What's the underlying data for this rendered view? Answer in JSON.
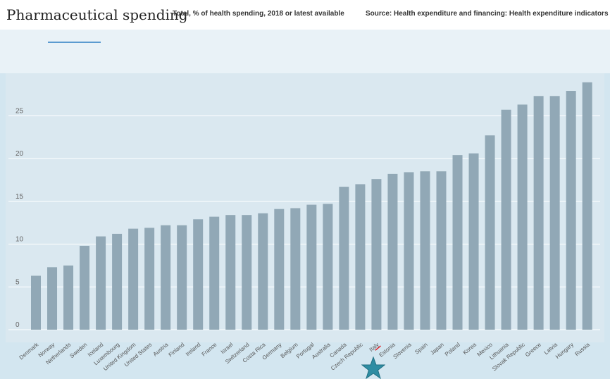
{
  "header": {
    "title": "Pharmaceutical spending",
    "subtitle": "Total, % of health spending, 2018 or latest available",
    "source": "Source: Health expenditure and financing: Health expenditure indicators"
  },
  "colors": {
    "bar": "#91a8b6",
    "highlight_marker": "#2f8da3",
    "highlight_underline": "#e0242a",
    "grid": "#ffffff",
    "tick_text": "#666666"
  },
  "highlight": {
    "category": "Italy",
    "marker": "star-icon"
  },
  "chart_data": {
    "type": "bar",
    "title": "",
    "xlabel": "",
    "ylabel": "",
    "ylim": [
      0,
      29
    ],
    "yticks": [
      0,
      5,
      10,
      15,
      20,
      25
    ],
    "grid": true,
    "categories": [
      "Denmark",
      "Norway",
      "Netherlands",
      "Sweden",
      "Iceland",
      "Luxembourg",
      "United Kingdom",
      "United States",
      "Austria",
      "Finland",
      "Ireland",
      "France",
      "Israel",
      "Switzerland",
      "Costa Rica",
      "Germany",
      "Belgium",
      "Portugal",
      "Australia",
      "Canada",
      "Czech Republic",
      "Italy",
      "Estonia",
      "Slovenia",
      "Spain",
      "Japan",
      "Poland",
      "Korea",
      "Mexico",
      "Lithuania",
      "Slovak Republic",
      "Greece",
      "Latvia",
      "Hungary",
      "Russia"
    ],
    "values": [
      6.3,
      7.3,
      7.5,
      9.8,
      10.9,
      11.2,
      11.8,
      11.9,
      12.2,
      12.2,
      12.9,
      13.2,
      13.4,
      13.4,
      13.6,
      14.1,
      14.2,
      14.6,
      14.7,
      16.7,
      17.0,
      17.6,
      18.2,
      18.4,
      18.5,
      18.5,
      20.4,
      20.6,
      22.7,
      25.7,
      26.3,
      27.3,
      27.3,
      27.9,
      28.9
    ]
  }
}
